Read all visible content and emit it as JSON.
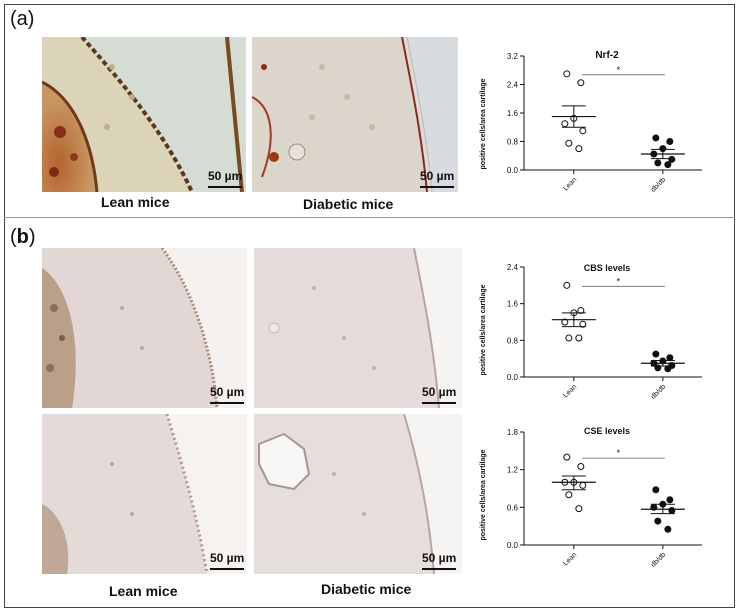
{
  "panels": {
    "a": {
      "label_open": "(",
      "letter": "a",
      "label_close": ")"
    },
    "b": {
      "label_open": "(",
      "letter": "b",
      "label_close": ")"
    }
  },
  "scale_bar_label": "50 µm",
  "captions": {
    "a_lean": "Lean mice",
    "a_diabetic": "Diabetic mice",
    "b_lean": "Lean mice",
    "b_diabetic": "Diabetic mice"
  },
  "chart_data": [
    {
      "type": "scatter",
      "title": "Nrf-2",
      "ylabel": "positive cells/area cartilage",
      "categories": [
        "Lean",
        "db/db"
      ],
      "ylim": [
        0,
        3.2
      ],
      "yticks": [
        "0.0",
        "0.8",
        "1.6",
        "2.4",
        "3.2"
      ],
      "yticks_values": [
        0,
        0.8,
        1.6,
        2.4,
        3.2
      ],
      "significance": "*",
      "series": [
        {
          "category": "Lean",
          "fill": "#ffffff",
          "values": [
            2.7,
            2.45,
            1.45,
            1.3,
            1.1,
            0.75,
            0.6
          ],
          "mean": 1.5,
          "sem": [
            1.2,
            1.8
          ]
        },
        {
          "category": "db/db",
          "fill": "#111111",
          "values": [
            0.9,
            0.8,
            0.6,
            0.45,
            0.3,
            0.2,
            0.15
          ],
          "mean": 0.45,
          "sem": [
            0.32,
            0.58
          ]
        }
      ]
    },
    {
      "type": "scatter",
      "title": "CBS levels",
      "ylabel": "positive cells/area cartilage",
      "categories": [
        "Lean",
        "db/db"
      ],
      "ylim": [
        0,
        2.4
      ],
      "yticks": [
        "0.0",
        "0.8",
        "1.6",
        "2.4"
      ],
      "yticks_values": [
        0,
        0.8,
        1.6,
        2.4
      ],
      "significance": "*",
      "series": [
        {
          "category": "Lean",
          "fill": "#ffffff",
          "values": [
            2.0,
            1.45,
            1.4,
            1.2,
            1.15,
            0.85,
            0.85
          ],
          "mean": 1.25,
          "sem": [
            1.1,
            1.4
          ]
        },
        {
          "category": "db/db",
          "fill": "#111111",
          "values": [
            0.5,
            0.42,
            0.35,
            0.3,
            0.25,
            0.2,
            0.18
          ],
          "mean": 0.3,
          "sem": [
            0.24,
            0.36
          ]
        }
      ]
    },
    {
      "type": "scatter",
      "title": "CSE levels",
      "ylabel": "positive cells/area cartilage",
      "categories": [
        "Lean",
        "db/db"
      ],
      "ylim": [
        0,
        1.8
      ],
      "yticks": [
        "0.0",
        "0.6",
        "1.2",
        "1.8"
      ],
      "yticks_values": [
        0,
        0.6,
        1.2,
        1.8
      ],
      "significance": "*",
      "series": [
        {
          "category": "Lean",
          "fill": "#ffffff",
          "values": [
            1.4,
            1.25,
            1.0,
            1.0,
            0.95,
            0.8,
            0.58
          ],
          "mean": 1.0,
          "sem": [
            0.88,
            1.1
          ]
        },
        {
          "category": "db/db",
          "fill": "#111111",
          "values": [
            0.88,
            0.72,
            0.65,
            0.6,
            0.55,
            0.38,
            0.25
          ],
          "mean": 0.57,
          "sem": [
            0.5,
            0.65
          ]
        }
      ]
    }
  ]
}
